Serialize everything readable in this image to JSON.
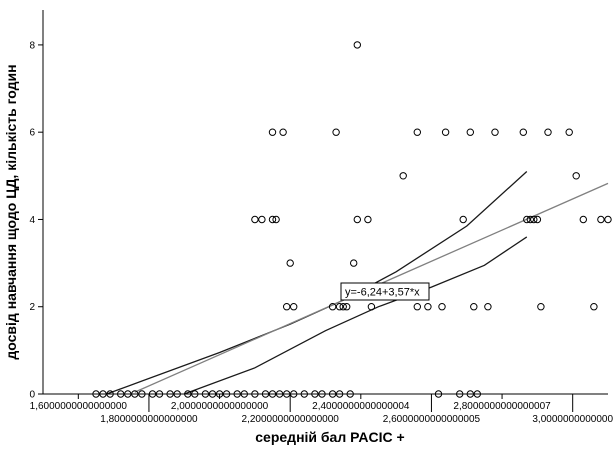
{
  "chart_data": {
    "type": "scatter",
    "title": "",
    "xlabel": "середній бал PACIC +",
    "ylabel": "досвід навчання щодо ЦД, кількість годин",
    "xlim": [
      1.5,
      3.1
    ],
    "ylim": [
      0,
      8.8
    ],
    "grid": false,
    "x_ticks_lower": [
      {
        "value": 1.6,
        "label": "1,6000000000000000"
      },
      {
        "value": 2.0,
        "label": "2,0000000000000000"
      },
      {
        "value": 2.4,
        "label": "2,4000000000000004"
      },
      {
        "value": 2.8,
        "label": "2,8000000000000007"
      }
    ],
    "x_ticks_upper": [
      {
        "value": 1.8,
        "label": "1,8000000000000000"
      },
      {
        "value": 2.2,
        "label": "2,2000000000000000"
      },
      {
        "value": 2.6,
        "label": "2,6000000000000005"
      },
      {
        "value": 3.0,
        "label": "3,0000000000000"
      }
    ],
    "y_ticks": [
      {
        "value": 0,
        "label": "0"
      },
      {
        "value": 2,
        "label": "2"
      },
      {
        "value": 4,
        "label": "4"
      },
      {
        "value": 6,
        "label": "6"
      },
      {
        "value": 8,
        "label": "8"
      }
    ],
    "equation_label": "y=-6,24+3,57*x",
    "colors": {
      "points": "#000000",
      "fit_line": "#808080",
      "ci_lines": "#1a1a1a",
      "axes": "#000000"
    },
    "fit_line": {
      "intercept": -6.24,
      "slope": 3.57,
      "x_range": [
        1.76,
        3.1
      ]
    },
    "ci_upper": [
      [
        1.68,
        0.0
      ],
      [
        2.0,
        0.95
      ],
      [
        2.2,
        1.6
      ],
      [
        2.35,
        2.15
      ],
      [
        2.5,
        2.8
      ],
      [
        2.7,
        3.85
      ],
      [
        2.87,
        5.1
      ]
    ],
    "ci_lower": [
      [
        1.9,
        0.0
      ],
      [
        2.1,
        0.6
      ],
      [
        2.3,
        1.45
      ],
      [
        2.45,
        2.0
      ],
      [
        2.6,
        2.45
      ],
      [
        2.75,
        2.95
      ],
      [
        2.87,
        3.6
      ]
    ],
    "points": [
      {
        "x": 1.65,
        "y": 0
      },
      {
        "x": 1.67,
        "y": 0
      },
      {
        "x": 1.69,
        "y": 0
      },
      {
        "x": 1.72,
        "y": 0
      },
      {
        "x": 1.74,
        "y": 0
      },
      {
        "x": 1.76,
        "y": 0
      },
      {
        "x": 1.78,
        "y": 0
      },
      {
        "x": 1.81,
        "y": 0
      },
      {
        "x": 1.83,
        "y": 0
      },
      {
        "x": 1.86,
        "y": 0
      },
      {
        "x": 1.88,
        "y": 0
      },
      {
        "x": 1.91,
        "y": 0
      },
      {
        "x": 1.93,
        "y": 0
      },
      {
        "x": 1.96,
        "y": 0
      },
      {
        "x": 1.98,
        "y": 0
      },
      {
        "x": 2.0,
        "y": 0
      },
      {
        "x": 2.02,
        "y": 0
      },
      {
        "x": 2.05,
        "y": 0
      },
      {
        "x": 2.07,
        "y": 0
      },
      {
        "x": 2.1,
        "y": 0
      },
      {
        "x": 2.13,
        "y": 0
      },
      {
        "x": 2.15,
        "y": 0
      },
      {
        "x": 2.17,
        "y": 0
      },
      {
        "x": 2.19,
        "y": 0
      },
      {
        "x": 2.21,
        "y": 0
      },
      {
        "x": 2.24,
        "y": 0
      },
      {
        "x": 2.27,
        "y": 0
      },
      {
        "x": 2.29,
        "y": 0
      },
      {
        "x": 2.32,
        "y": 0
      },
      {
        "x": 2.34,
        "y": 0
      },
      {
        "x": 2.37,
        "y": 0
      },
      {
        "x": 2.62,
        "y": 0
      },
      {
        "x": 2.68,
        "y": 0
      },
      {
        "x": 2.71,
        "y": 0
      },
      {
        "x": 2.73,
        "y": 0
      },
      {
        "x": 2.1,
        "y": 4
      },
      {
        "x": 2.12,
        "y": 4
      },
      {
        "x": 2.15,
        "y": 4
      },
      {
        "x": 2.16,
        "y": 4
      },
      {
        "x": 2.15,
        "y": 6
      },
      {
        "x": 2.18,
        "y": 6
      },
      {
        "x": 2.2,
        "y": 3
      },
      {
        "x": 2.19,
        "y": 2
      },
      {
        "x": 2.21,
        "y": 2
      },
      {
        "x": 2.32,
        "y": 2
      },
      {
        "x": 2.34,
        "y": 2
      },
      {
        "x": 2.35,
        "y": 2
      },
      {
        "x": 2.36,
        "y": 2
      },
      {
        "x": 2.33,
        "y": 6
      },
      {
        "x": 2.38,
        "y": 3
      },
      {
        "x": 2.39,
        "y": 4
      },
      {
        "x": 2.39,
        "y": 8
      },
      {
        "x": 2.42,
        "y": 4
      },
      {
        "x": 2.43,
        "y": 2
      },
      {
        "x": 2.52,
        "y": 5
      },
      {
        "x": 2.56,
        "y": 6
      },
      {
        "x": 2.56,
        "y": 2
      },
      {
        "x": 2.59,
        "y": 2
      },
      {
        "x": 2.63,
        "y": 2
      },
      {
        "x": 2.64,
        "y": 6
      },
      {
        "x": 2.69,
        "y": 4
      },
      {
        "x": 2.71,
        "y": 6
      },
      {
        "x": 2.72,
        "y": 2
      },
      {
        "x": 2.76,
        "y": 2
      },
      {
        "x": 2.78,
        "y": 6
      },
      {
        "x": 2.86,
        "y": 6
      },
      {
        "x": 2.87,
        "y": 4
      },
      {
        "x": 2.88,
        "y": 4
      },
      {
        "x": 2.89,
        "y": 4
      },
      {
        "x": 2.9,
        "y": 4
      },
      {
        "x": 2.91,
        "y": 2
      },
      {
        "x": 2.93,
        "y": 6
      },
      {
        "x": 2.99,
        "y": 6
      },
      {
        "x": 3.01,
        "y": 5
      },
      {
        "x": 3.03,
        "y": 4
      },
      {
        "x": 3.06,
        "y": 2
      },
      {
        "x": 3.08,
        "y": 4
      },
      {
        "x": 3.1,
        "y": 4
      }
    ]
  }
}
